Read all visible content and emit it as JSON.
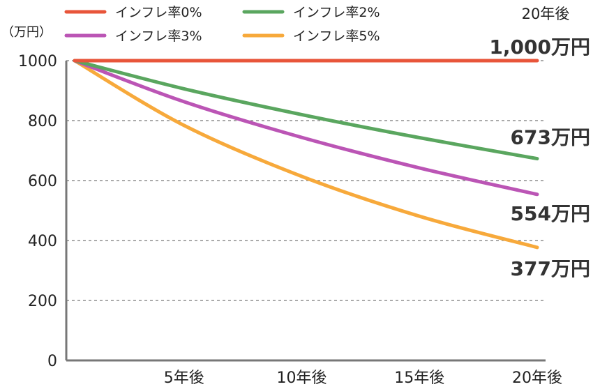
{
  "chart_data": {
    "type": "line",
    "title": "",
    "y_unit_label": "（万円）",
    "corner_label": "20年後",
    "xlabel": "",
    "ylabel": "万円",
    "xlim": [
      0,
      20
    ],
    "ylim": [
      0,
      1000
    ],
    "x_ticks": [
      {
        "value": 5,
        "label": "5年後"
      },
      {
        "value": 10,
        "label": "10年後"
      },
      {
        "value": 15,
        "label": "15年後"
      },
      {
        "value": 20,
        "label": "20年後"
      }
    ],
    "y_ticks": [
      {
        "value": 0,
        "label": "0"
      },
      {
        "value": 200,
        "label": "200"
      },
      {
        "value": 400,
        "label": "400"
      },
      {
        "value": 600,
        "label": "600"
      },
      {
        "value": 800,
        "label": "800"
      },
      {
        "value": 1000,
        "label": "1000"
      }
    ],
    "grid": "horizontal-dashed",
    "x": [
      0,
      5,
      10,
      15,
      20
    ],
    "series": [
      {
        "name": "インフレ率0%",
        "color": "#e8553a",
        "values": [
          1000,
          1000,
          1000,
          1000,
          1000
        ],
        "end_label": "1,000万円"
      },
      {
        "name": "インフレ率2%",
        "color": "#5aa65f",
        "values": [
          1000,
          906,
          820,
          743,
          673
        ],
        "end_label": "673万円"
      },
      {
        "name": "インフレ率3%",
        "color": "#bb55b5",
        "values": [
          1000,
          863,
          744,
          642,
          554
        ],
        "end_label": "554万円"
      },
      {
        "name": "インフレ率5%",
        "color": "#f7a93b",
        "values": [
          1000,
          784,
          614,
          481,
          377
        ],
        "end_label": "377万円"
      }
    ],
    "legend_position": "top-left"
  }
}
